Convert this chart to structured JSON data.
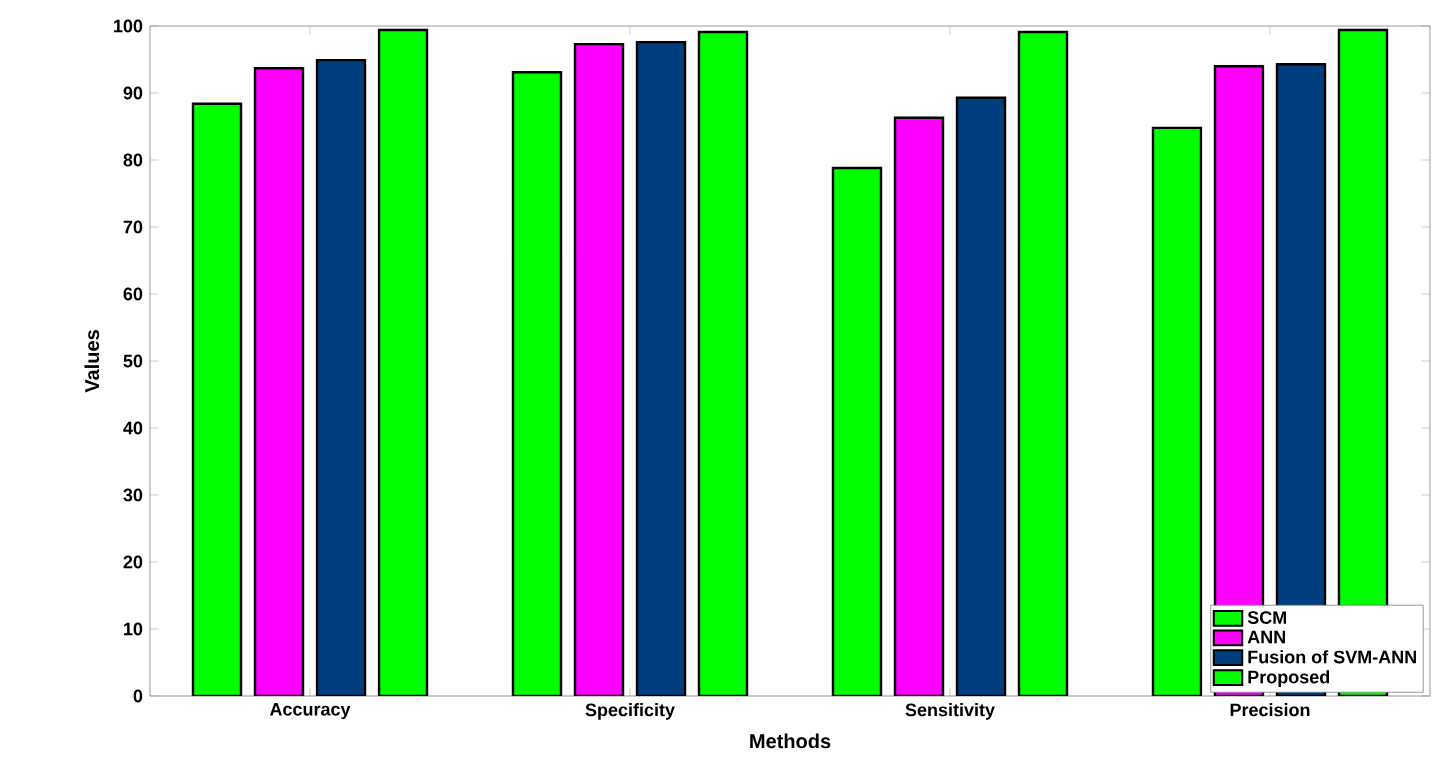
{
  "chart_data": {
    "type": "bar",
    "xlabel": "Methods",
    "ylabel": "Values",
    "categories": [
      "Accuracy",
      "Specificity",
      "Sensitivity",
      "Precision"
    ],
    "series": [
      {
        "name": "SCM",
        "color": "#00ff00",
        "values": [
          88.4,
          93.1,
          78.8,
          84.8
        ]
      },
      {
        "name": "ANN",
        "color": "#ff00ff",
        "values": [
          93.7,
          97.3,
          86.3,
          94.0
        ]
      },
      {
        "name": "Fusion of SVM-ANN",
        "color": "#003f7f",
        "values": [
          94.9,
          97.6,
          89.3,
          94.3
        ]
      },
      {
        "name": "Proposed",
        "color": "#00ff00",
        "values": [
          99.4,
          99.1,
          99.1,
          99.4
        ]
      }
    ],
    "ylim": [
      0,
      100
    ],
    "yticks": [
      0,
      10,
      20,
      30,
      40,
      50,
      60,
      70,
      80,
      90,
      100
    ],
    "grid": false,
    "legend": "bottom right"
  }
}
